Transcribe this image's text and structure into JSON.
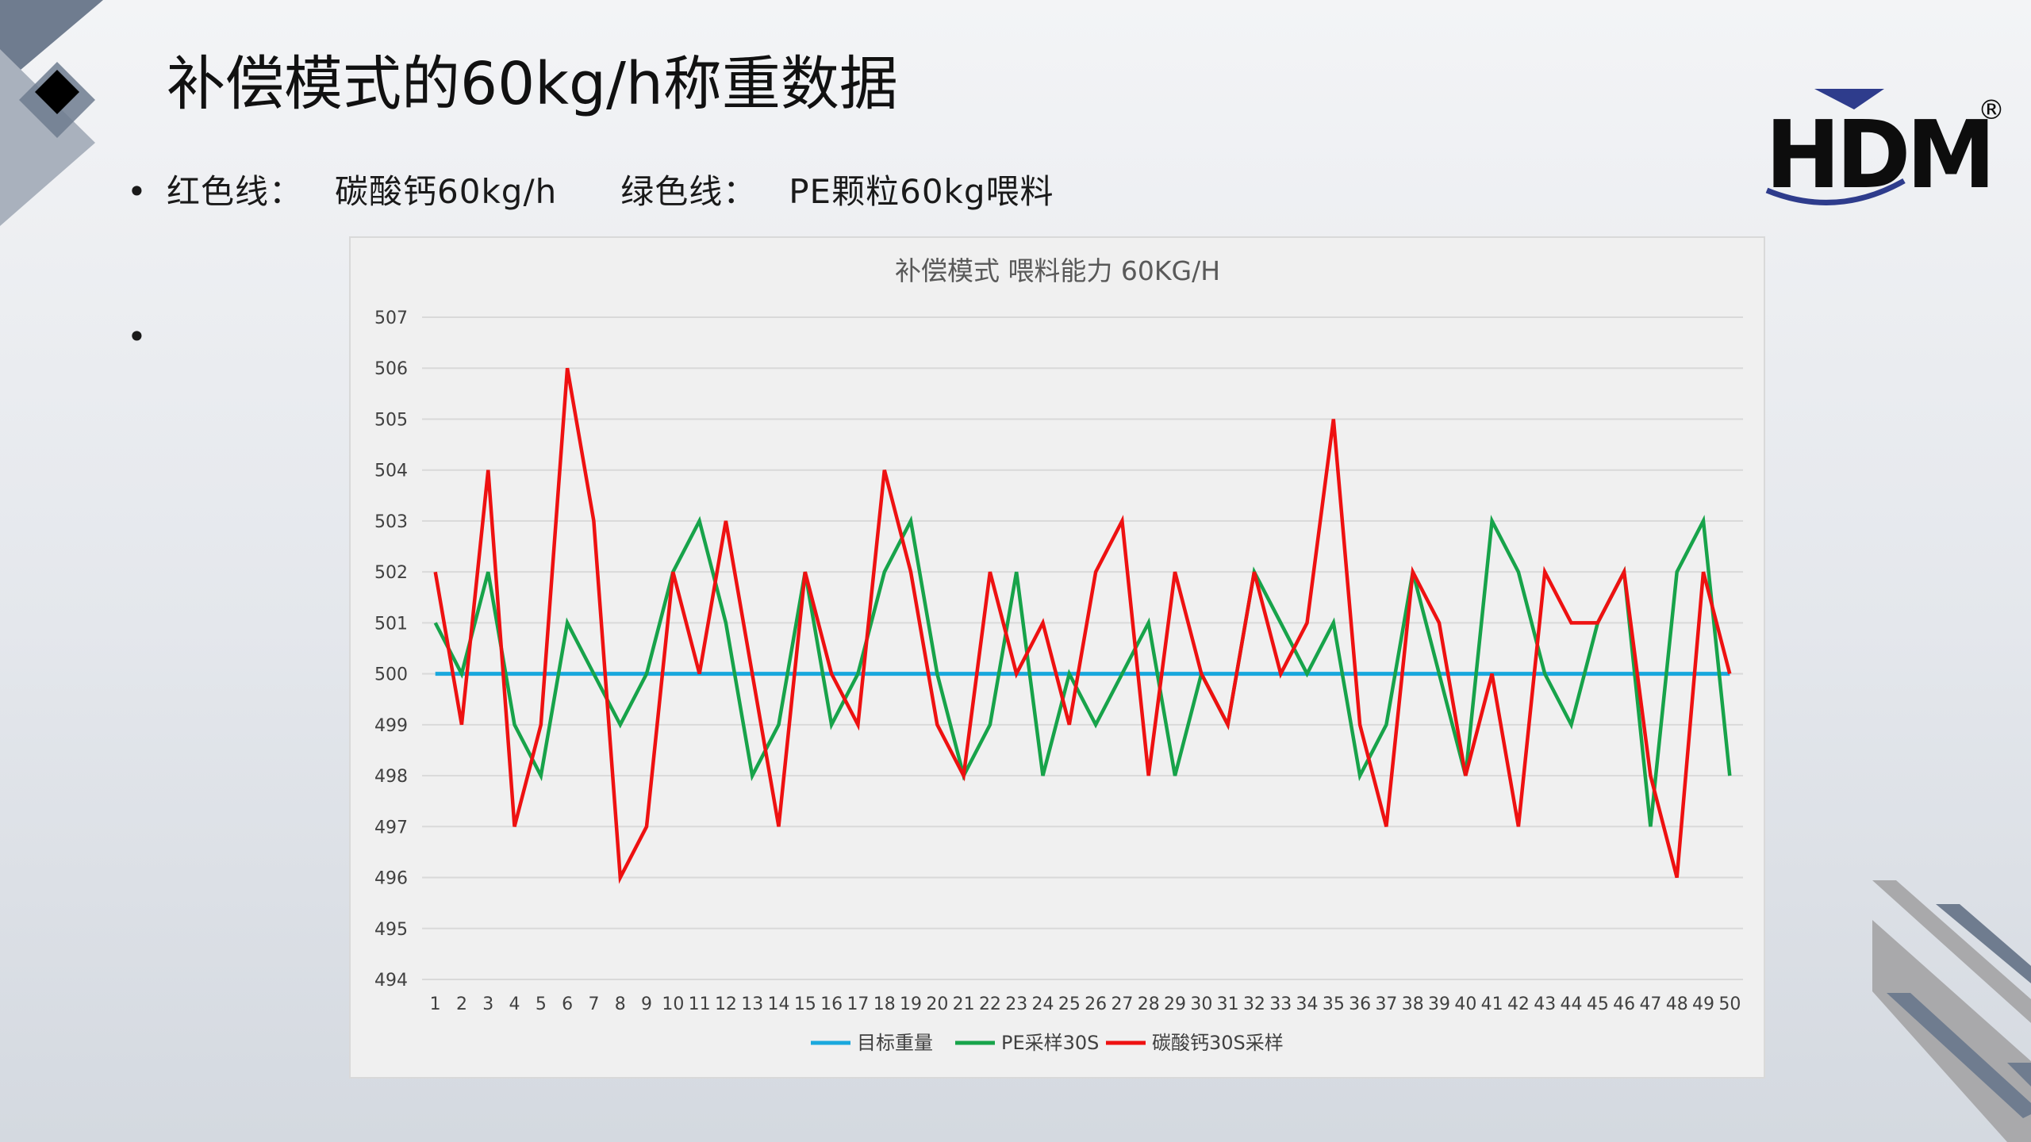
{
  "slide": {
    "title": "补偿模式的60kg/h称重数据",
    "bullet1": {
      "marker": "•",
      "red_label": "红色线：",
      "red_desc": "碳酸钙60kg/h",
      "green_label": "绿色线：",
      "green_desc": "PE颗粒60kg喂料"
    },
    "bullet2": {
      "marker": "•"
    }
  },
  "logo": {
    "text": "HDM",
    "registered": "®",
    "color": "#0d0d0d",
    "accent": "#2e3c8c"
  },
  "colors": {
    "target": "#1aa8dd",
    "pe": "#17a34a",
    "caco3": "#ee1111",
    "grid": "#d9d9d9",
    "decor_dark": "#6f7c8f",
    "decor_light": "#a9b1bd"
  },
  "chart_data": {
    "type": "line",
    "title": "补偿模式 喂料能力 60KG/H",
    "xlabel": "",
    "ylabel": "",
    "ylim": [
      494,
      507
    ],
    "y_ticks": [
      494,
      495,
      496,
      497,
      498,
      499,
      500,
      501,
      502,
      503,
      504,
      505,
      506,
      507
    ],
    "categories": [
      "1",
      "2",
      "3",
      "4",
      "5",
      "6",
      "7",
      "8",
      "9",
      "10",
      "11",
      "12",
      "13",
      "14",
      "15",
      "16",
      "17",
      "18",
      "19",
      "20",
      "21",
      "22",
      "23",
      "24",
      "25",
      "26",
      "27",
      "28",
      "29",
      "30",
      "31",
      "32",
      "33",
      "34",
      "35",
      "36",
      "37",
      "38",
      "39",
      "40",
      "41",
      "42",
      "43",
      "44",
      "45",
      "46",
      "47",
      "48",
      "49",
      "50"
    ],
    "grid": true,
    "legend_position": "bottom",
    "series": [
      {
        "name": "目标重量",
        "color": "#1aa8dd",
        "values": [
          500,
          500,
          500,
          500,
          500,
          500,
          500,
          500,
          500,
          500,
          500,
          500,
          500,
          500,
          500,
          500,
          500,
          500,
          500,
          500,
          500,
          500,
          500,
          500,
          500,
          500,
          500,
          500,
          500,
          500,
          500,
          500,
          500,
          500,
          500,
          500,
          500,
          500,
          500,
          500,
          500,
          500,
          500,
          500,
          500,
          500,
          500,
          500,
          500,
          500
        ]
      },
      {
        "name": "PE采样30S",
        "color": "#17a34a",
        "values": [
          501,
          500,
          502,
          499,
          498,
          501,
          500,
          499,
          500,
          502,
          503,
          501,
          498,
          499,
          502,
          499,
          500,
          502,
          503,
          500,
          498,
          499,
          502,
          498,
          500,
          499,
          500,
          501,
          498,
          500,
          499,
          502,
          501,
          500,
          501,
          498,
          499,
          502,
          500,
          498,
          503,
          502,
          500,
          499,
          501,
          502,
          497,
          502,
          503,
          498
        ]
      },
      {
        "name": "碳酸钙30S采样",
        "color": "#ee1111",
        "values": [
          502,
          499,
          504,
          497,
          499,
          506,
          503,
          496,
          497,
          502,
          500,
          503,
          500,
          497,
          502,
          500,
          499,
          504,
          502,
          499,
          498,
          502,
          500,
          501,
          499,
          502,
          503,
          498,
          502,
          500,
          499,
          502,
          500,
          501,
          505,
          499,
          497,
          502,
          501,
          498,
          500,
          497,
          502,
          501,
          501,
          502,
          498,
          496,
          502,
          500
        ]
      }
    ]
  }
}
